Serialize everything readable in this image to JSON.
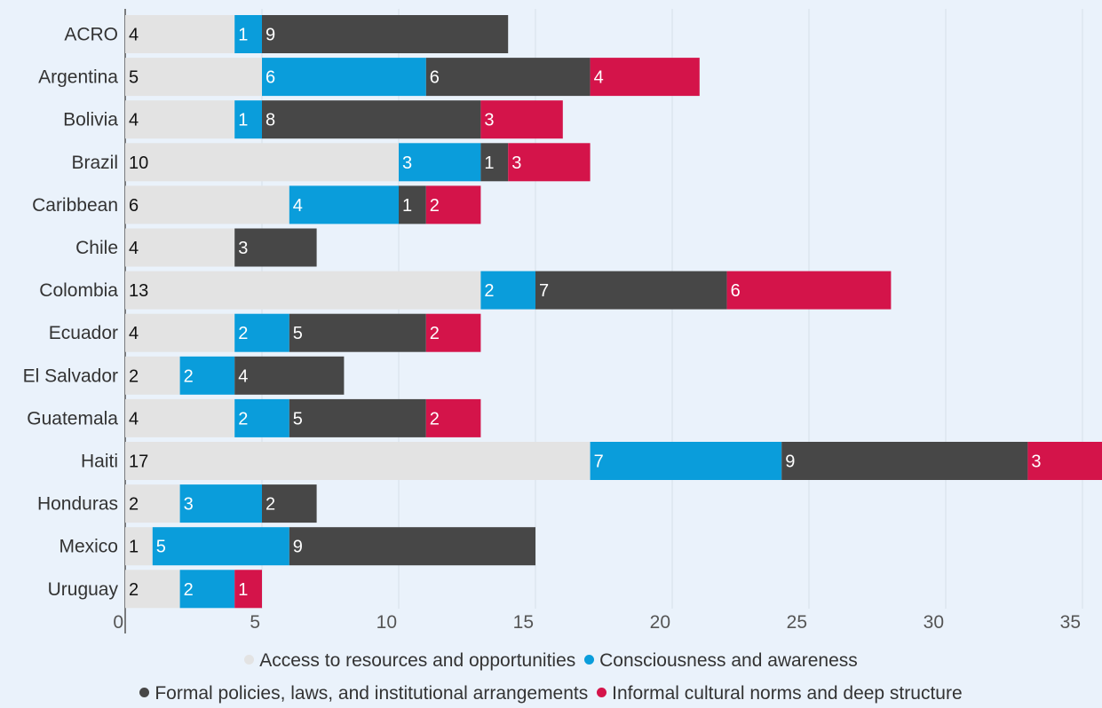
{
  "chart_data": {
    "type": "bar",
    "orientation": "horizontal",
    "stacked": true,
    "categories": [
      "ACRO",
      "Argentina",
      "Bolivia",
      "Brazil",
      "Caribbean",
      "Chile",
      "Colombia",
      "Ecuador",
      "El Salvador",
      "Guatemala",
      "Haiti",
      "Honduras",
      "Mexico",
      "Uruguay"
    ],
    "series": [
      {
        "name": "Access to resources and opportunities",
        "color": "#e3e3e3",
        "label_color": "#111111",
        "values": [
          4,
          5,
          4,
          10,
          6,
          4,
          13,
          4,
          2,
          4,
          17,
          2,
          1,
          2
        ]
      },
      {
        "name": "Consciousness and awareness",
        "color": "#0a9ddb",
        "label_color": "#ffffff",
        "values": [
          1,
          6,
          1,
          3,
          4,
          0,
          2,
          2,
          2,
          2,
          7,
          3,
          5,
          2
        ]
      },
      {
        "name": "Formal policies, laws, and institutional arrangements",
        "color": "#474747",
        "label_color": "#ffffff",
        "values": [
          9,
          6,
          8,
          1,
          1,
          3,
          7,
          5,
          4,
          5,
          9,
          2,
          9,
          0
        ]
      },
      {
        "name": "Informal cultural norms and deep structure",
        "color": "#d4144a",
        "label_color": "#ffffff",
        "values": [
          0,
          4,
          3,
          3,
          2,
          0,
          6,
          2,
          0,
          2,
          3,
          0,
          0,
          1
        ]
      }
    ],
    "xaxis": {
      "min": 0,
      "max": 35,
      "ticks": [
        0,
        5,
        10,
        15,
        20,
        25,
        30,
        35
      ]
    },
    "grid": true,
    "legend_position": "bottom"
  }
}
